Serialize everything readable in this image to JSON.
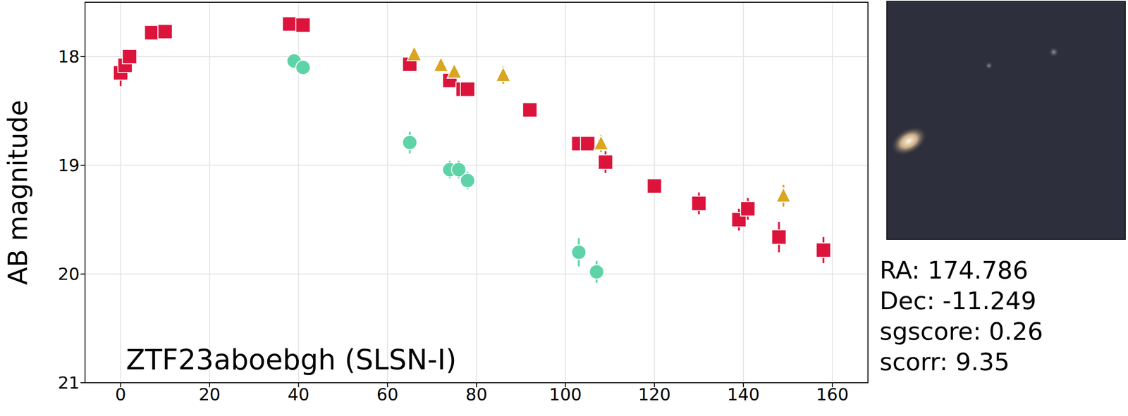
{
  "chart_data": {
    "type": "scatter",
    "annotation": "ZTF23aboebgh (SLSN-I)",
    "y_label": "AB magnitude",
    "xlim": [
      -8,
      168
    ],
    "xticks": [
      0,
      20,
      40,
      60,
      80,
      100,
      120,
      140,
      160
    ],
    "ylim": [
      21,
      17.5
    ],
    "yticks": [
      18,
      19,
      20,
      21
    ],
    "grid": true,
    "series": [
      {
        "color": "#dc143c",
        "marker": "square",
        "x": [
          0,
          1,
          2,
          7,
          10,
          38,
          41,
          65,
          74,
          77,
          78,
          92,
          103,
          105,
          109,
          120,
          130,
          139,
          141,
          148,
          158
        ],
        "values": [
          18.15,
          18.08,
          18.0,
          17.78,
          17.77,
          17.7,
          17.71,
          18.07,
          18.22,
          18.3,
          18.3,
          18.49,
          18.8,
          18.8,
          18.97,
          19.19,
          19.35,
          19.5,
          19.4,
          19.66,
          19.78
        ],
        "errors": [
          0.12,
          0.06,
          0.05,
          0.04,
          0.04,
          0.03,
          0.03,
          0.04,
          0.05,
          0.04,
          0.04,
          0.04,
          0.06,
          0.06,
          0.1,
          0.07,
          0.1,
          0.1,
          0.1,
          0.14,
          0.12
        ]
      },
      {
        "color": "#5fd3a8",
        "marker": "circle",
        "x": [
          39,
          41,
          65,
          74,
          76,
          78,
          103,
          107
        ],
        "values": [
          18.04,
          18.1,
          18.79,
          19.04,
          19.04,
          19.14,
          19.8,
          19.98
        ],
        "errors": [
          0.04,
          0.04,
          0.1,
          0.08,
          0.08,
          0.08,
          0.13,
          0.1
        ]
      },
      {
        "color": "#daa520",
        "marker": "triangle",
        "x": [
          66,
          72,
          75,
          86,
          108,
          149
        ],
        "values": [
          17.98,
          18.08,
          18.14,
          18.17,
          18.8,
          19.28
        ],
        "errors": [
          0.05,
          0.04,
          0.05,
          0.08,
          0.08,
          0.1
        ]
      }
    ],
    "side_text": [
      "RA: 174.786",
      "Dec: -11.249",
      "sgscore: 0.26",
      "scorr: 9.35"
    ]
  }
}
